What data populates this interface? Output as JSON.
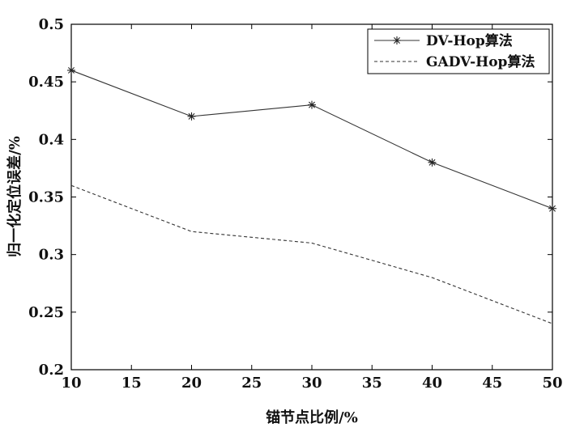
{
  "chart_data": {
    "type": "line",
    "xlabel": "锚节点比例/%",
    "ylabel": "归一化定位误差/%",
    "xlim": [
      10,
      50
    ],
    "ylim": [
      0.2,
      0.5
    ],
    "x_ticks": [
      "10",
      "15",
      "20",
      "25",
      "30",
      "35",
      "40",
      "45",
      "50"
    ],
    "y_ticks": [
      "0.2",
      "0.25",
      "0.3",
      "0.35",
      "0.4",
      "0.45",
      "0.5"
    ],
    "grid": false,
    "legend_position": "top-right",
    "x": [
      10,
      20,
      30,
      40,
      50
    ],
    "series": [
      {
        "name": "DV-Hop算法",
        "values": [
          0.46,
          0.42,
          0.43,
          0.38,
          0.34
        ],
        "style": "solid",
        "marker": "asterisk",
        "color": "#333333"
      },
      {
        "name": "GADV-Hop算法",
        "values": [
          0.36,
          0.32,
          0.31,
          0.28,
          0.24
        ],
        "style": "dashed",
        "marker": "none",
        "color": "#333333"
      }
    ]
  }
}
